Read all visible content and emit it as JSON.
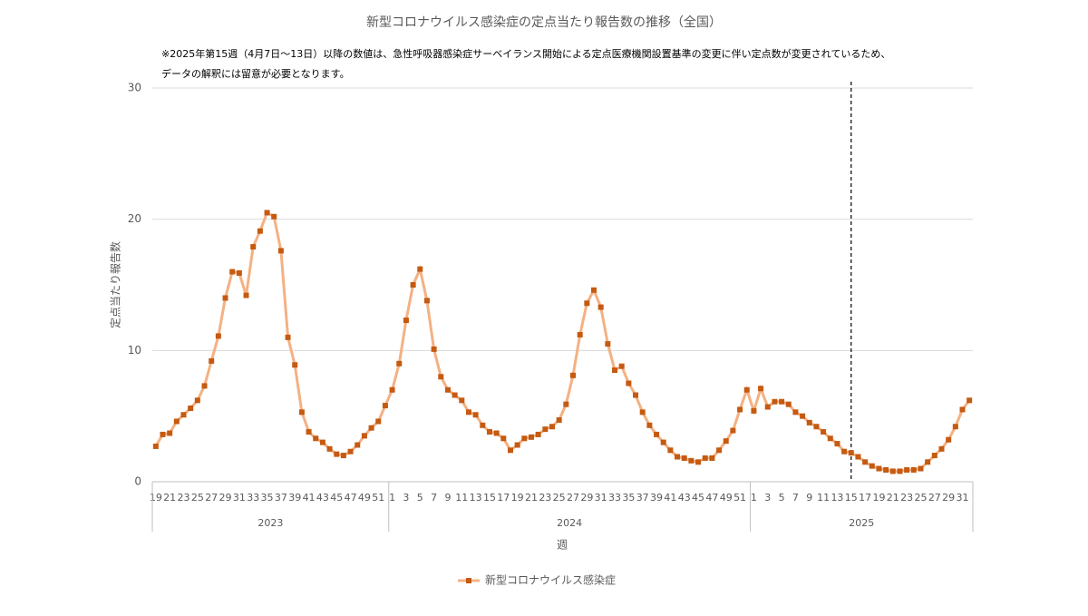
{
  "chart_data": {
    "type": "line",
    "title": "新型コロナウイルス感染症の定点当たり報告数の推移（全国）",
    "notes": [
      "※2025年第15週（4月7日～13日）以降の数値は、急性呼吸器感染症サーベイランス開始による定点医療機関設置基準の変更に伴い定点数が変更されているため、",
      "データの解釈には留意が必要となります。"
    ],
    "y_label": "定点当たり報告数",
    "x_label": "週",
    "categories": [
      19,
      null,
      21,
      null,
      23,
      null,
      25,
      null,
      27,
      null,
      29,
      null,
      31,
      null,
      33,
      null,
      35,
      null,
      37,
      null,
      39,
      null,
      41,
      null,
      43,
      null,
      45,
      null,
      47,
      null,
      49,
      null,
      51,
      null,
      1,
      null,
      3,
      null,
      5,
      null,
      7,
      null,
      9,
      null,
      11,
      null,
      13,
      null,
      15,
      null,
      17,
      null,
      19,
      null,
      21,
      null,
      23,
      null,
      25,
      null,
      27,
      null,
      29,
      null,
      31,
      null,
      33,
      null,
      35,
      null,
      37,
      null,
      39,
      null,
      41,
      null,
      43,
      null,
      45,
      null,
      47,
      null,
      49,
      null,
      51,
      null,
      1,
      null,
      3,
      null,
      5,
      null,
      7,
      null,
      9,
      null,
      11,
      null,
      13,
      null,
      15,
      null,
      17,
      null,
      19,
      null,
      21,
      null,
      23,
      null,
      25,
      null,
      27,
      null,
      29,
      null,
      31,
      null
    ],
    "groups": [
      {
        "label": "2023",
        "count": 34
      },
      {
        "label": "2024",
        "count": 52
      },
      {
        "label": "2025",
        "count": 32
      }
    ],
    "series": [
      {
        "name": "新型コロナウイルス感染症",
        "color": "#f4b183",
        "marker_color": "#c55a11",
        "values": [
          2.7,
          3.6,
          3.7,
          4.6,
          5.1,
          5.6,
          6.2,
          7.3,
          9.2,
          11.1,
          14.0,
          16.0,
          15.9,
          14.2,
          17.9,
          19.1,
          20.5,
          20.2,
          17.6,
          11.0,
          8.9,
          5.3,
          3.8,
          3.3,
          3.0,
          2.5,
          2.1,
          2.0,
          2.3,
          2.8,
          3.5,
          4.1,
          4.6,
          5.8,
          7.0,
          9.0,
          12.3,
          15.0,
          16.2,
          13.8,
          10.1,
          8.0,
          7.0,
          6.6,
          6.2,
          5.3,
          5.1,
          4.3,
          3.8,
          3.7,
          3.3,
          2.4,
          2.8,
          3.3,
          3.4,
          3.6,
          4.0,
          4.2,
          4.7,
          5.9,
          8.1,
          11.2,
          13.6,
          14.6,
          13.3,
          10.5,
          8.5,
          8.8,
          7.5,
          6.6,
          5.3,
          4.3,
          3.6,
          3.0,
          2.4,
          1.9,
          1.8,
          1.6,
          1.5,
          1.8,
          1.8,
          2.4,
          3.1,
          3.9,
          5.5,
          7.0,
          5.4,
          7.1,
          5.7,
          6.1,
          6.1,
          5.9,
          5.3,
          5.0,
          4.5,
          4.2,
          3.8,
          3.3,
          2.9,
          2.3,
          2.2,
          1.9,
          1.5,
          1.2,
          1.0,
          0.9,
          0.8,
          0.8,
          0.9,
          0.9,
          1.0,
          1.5,
          2.0,
          2.5,
          3.2,
          4.2,
          5.5,
          6.2
        ]
      }
    ],
    "marker_line_index": 100,
    "ylim": [
      0,
      30
    ],
    "yticks": [
      0,
      10,
      20,
      30
    ],
    "grid": true,
    "legend": "bottom"
  }
}
